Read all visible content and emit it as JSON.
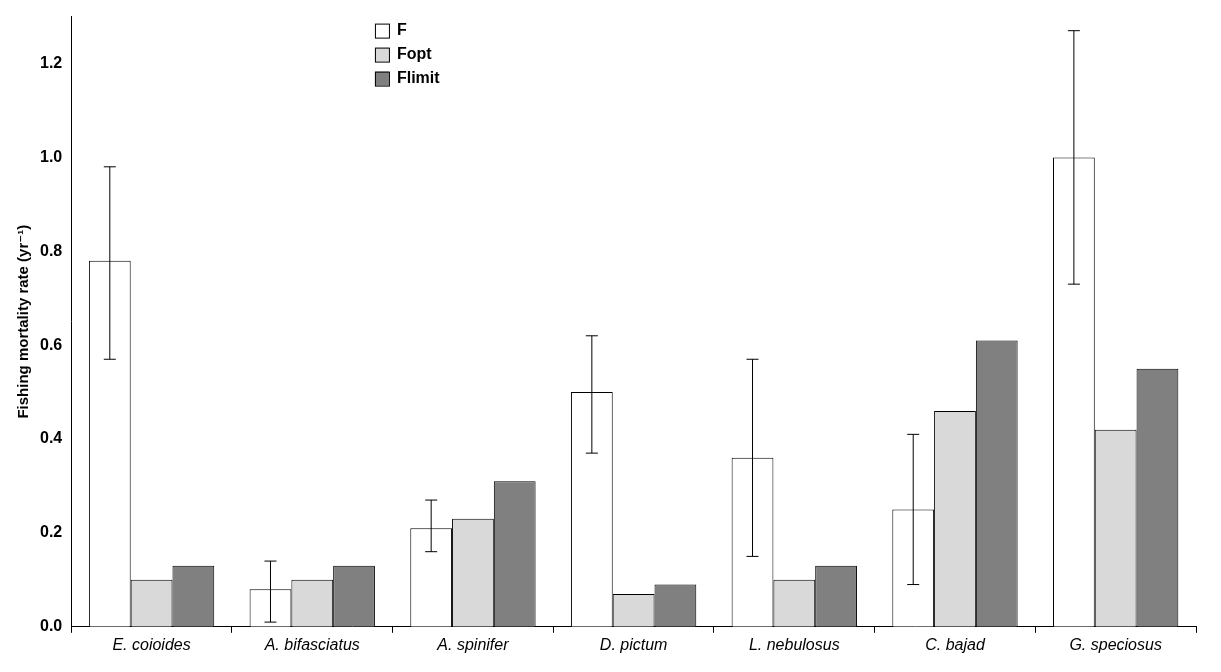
{
  "chart_data": {
    "type": "bar",
    "y_label": "Fishing mortality rate (yr⁻¹)",
    "categories": [
      "E. coioides",
      "A. bifasciatus",
      "A. spinifer",
      "D. pictum",
      "L. nebulosus",
      "C. bajad",
      "G. speciosus"
    ],
    "series": [
      {
        "name": "F",
        "color": "#ffffff",
        "values": [
          0.78,
          0.08,
          0.21,
          0.5,
          0.36,
          0.25,
          1.0
        ],
        "error_low": [
          0.57,
          0.01,
          0.16,
          0.37,
          0.15,
          0.09,
          0.73
        ],
        "error_high": [
          0.98,
          0.14,
          0.27,
          0.62,
          0.57,
          0.41,
          1.27
        ]
      },
      {
        "name": "Fopt",
        "color": "#d9d9d9",
        "values": [
          0.1,
          0.1,
          0.23,
          0.07,
          0.1,
          0.46,
          0.42
        ]
      },
      {
        "name": "Flimit",
        "color": "#808080",
        "values": [
          0.13,
          0.13,
          0.31,
          0.09,
          0.13,
          0.61,
          0.55
        ]
      }
    ],
    "ylim": [
      0,
      1.3
    ],
    "yticks": [
      {
        "value": 0,
        "label": "0.0"
      },
      {
        "value": 0.2,
        "label": "0.2"
      },
      {
        "value": 0.4,
        "label": "0.4"
      },
      {
        "value": 0.6,
        "label": "0.6"
      },
      {
        "value": 0.8,
        "label": "0.8"
      },
      {
        "value": 1.0,
        "label": "1.0"
      },
      {
        "value": 1.2,
        "label": "1.2"
      }
    ],
    "grid": false,
    "legend": "top"
  }
}
